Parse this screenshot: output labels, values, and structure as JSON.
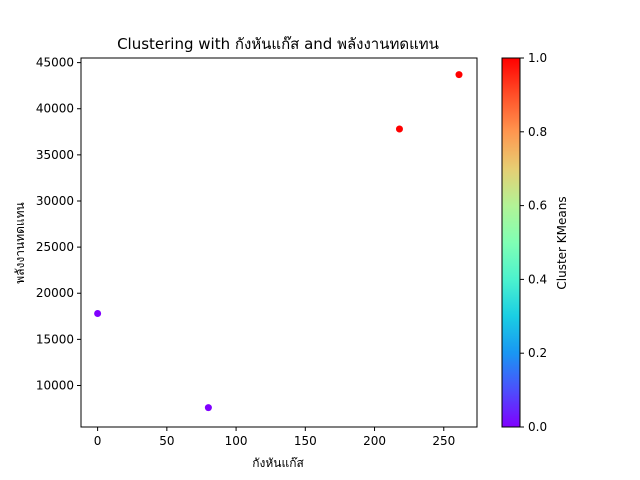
{
  "chart_data": {
    "type": "scatter",
    "title": "Clustering with กังหันแก๊ส and พลังงานทดแทน",
    "xlabel": "กังหันแก๊ส",
    "ylabel": "พลังงานทดแทน",
    "xlim": [
      -12,
      274
    ],
    "ylim": [
      5500,
      45500
    ],
    "xticks": [
      0,
      50,
      100,
      150,
      200,
      250
    ],
    "yticks": [
      10000,
      15000,
      20000,
      25000,
      30000,
      35000,
      40000,
      45000
    ],
    "points": [
      {
        "x": 0,
        "y": 17800,
        "cluster": 0
      },
      {
        "x": 80,
        "y": 7600,
        "cluster": 0
      },
      {
        "x": 218,
        "y": 37800,
        "cluster": 1
      },
      {
        "x": 261,
        "y": 43700,
        "cluster": 1
      }
    ],
    "cluster_colors": {
      "0": "#8000ff",
      "1": "#ff0000"
    },
    "colorbar": {
      "label": "Cluster KMeans",
      "range": [
        0.0,
        1.0
      ],
      "ticks": [
        "0.0",
        "0.2",
        "0.4",
        "0.6",
        "0.8",
        "1.0"
      ],
      "colormap": "rainbow",
      "colormap_stops": [
        "#8000ff",
        "#4c4ffc",
        "#1996f3",
        "#1acee3",
        "#4cf2ce",
        "#80ffb4",
        "#b2f396",
        "#e6ce73",
        "#ff964f",
        "#ff4f28",
        "#ff0000"
      ]
    },
    "grid": false,
    "legend": "none"
  }
}
